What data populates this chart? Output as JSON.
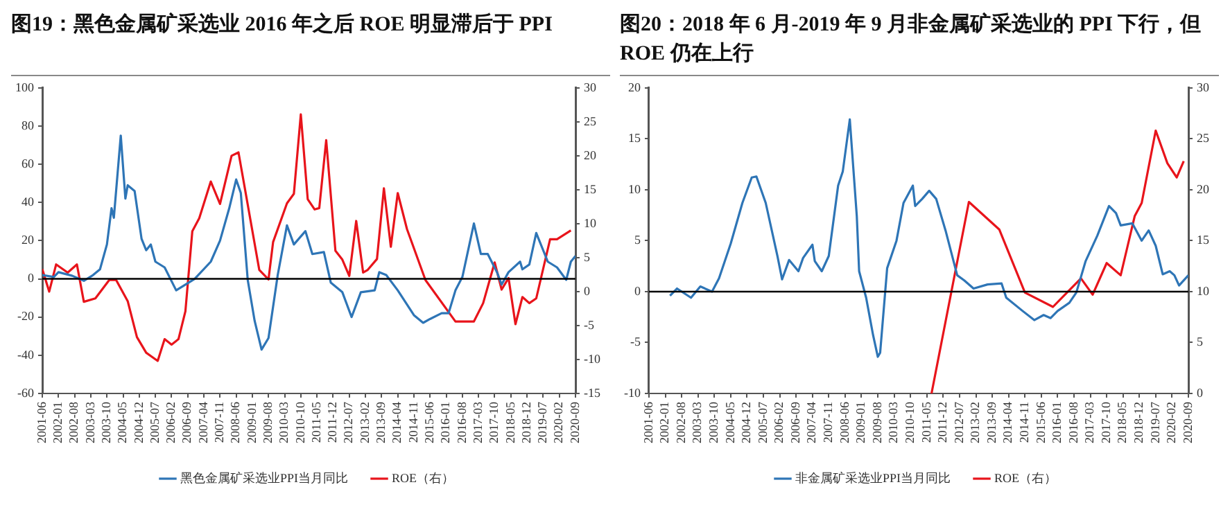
{
  "chart_data": [
    {
      "type": "line",
      "title": "图19：黑色金属矿采选业 2016 年之后 ROE 明显滞后于 PPI",
      "xlim": [
        "2001-06",
        "2020-09"
      ],
      "xticks": [
        "2001-06",
        "2002-01",
        "2002-08",
        "2003-03",
        "2003-10",
        "2004-05",
        "2004-12",
        "2005-07",
        "2006-02",
        "2006-09",
        "2007-04",
        "2007-11",
        "2008-06",
        "2009-01",
        "2009-08",
        "2010-03",
        "2010-10",
        "2011-05",
        "2011-12",
        "2012-07",
        "2013-02",
        "2013-09",
        "2014-04",
        "2014-11",
        "2015-06",
        "2016-01",
        "2016-08",
        "2017-03",
        "2017-10",
        "2018-05",
        "2018-12",
        "2019-07",
        "2020-02",
        "2020-09"
      ],
      "ylim": [
        -60,
        100
      ],
      "yticks": [
        -60,
        -40,
        -20,
        0,
        20,
        40,
        60,
        80,
        100
      ],
      "y2lim": [
        -15,
        30
      ],
      "y2ticks": [
        -15,
        -10,
        -5,
        0,
        5,
        10,
        15,
        20,
        25,
        30
      ],
      "legend": "bottom",
      "marker": "none",
      "line_style": "solid",
      "series": [
        {
          "name": "黑色金属矿采选业PPI当月同比",
          "color": "#2e75b6",
          "x": [
            "2001-06",
            "2001-11",
            "2002-01",
            "2002-07",
            "2002-12",
            "2003-04",
            "2003-07",
            "2003-10",
            "2003-12",
            "2004-01",
            "2004-04",
            "2004-06",
            "2004-07",
            "2004-10",
            "2005-01",
            "2005-03",
            "2005-05",
            "2005-07",
            "2005-11",
            "2006-04",
            "2006-08",
            "2006-12",
            "2007-07",
            "2007-11",
            "2008-03",
            "2008-06",
            "2008-08",
            "2008-11",
            "2009-02",
            "2009-05",
            "2009-08",
            "2009-12",
            "2010-04",
            "2010-07",
            "2010-12",
            "2011-03",
            "2011-08",
            "2011-11",
            "2012-04",
            "2012-08",
            "2012-12",
            "2013-06",
            "2013-08",
            "2013-11",
            "2014-04",
            "2014-11",
            "2015-03",
            "2015-06",
            "2015-11",
            "2016-02",
            "2016-05",
            "2016-08",
            "2017-01",
            "2017-04",
            "2017-07",
            "2017-11",
            "2018-01",
            "2018-04",
            "2018-09",
            "2018-10",
            "2019-01",
            "2019-04",
            "2019-09",
            "2020-01",
            "2020-05",
            "2020-07",
            "2020-09"
          ],
          "values": [
            2,
            1,
            3.5,
            1.6,
            -1,
            2,
            5,
            18,
            37,
            32,
            75,
            42,
            49,
            46,
            21,
            15,
            18,
            9,
            6,
            -6,
            -3,
            0,
            9,
            20,
            37,
            52,
            45,
            -0.5,
            -22,
            -37,
            -31,
            2,
            28,
            18,
            25,
            13,
            14,
            -2,
            -7,
            -20,
            -7,
            -6,
            3.5,
            2,
            -6,
            -19,
            -23,
            -21,
            -18,
            -18,
            -6,
            1,
            29,
            13,
            13,
            3.5,
            -3,
            3.5,
            9,
            5,
            7.5,
            24,
            9,
            6,
            -0.5,
            9,
            12
          ]
        },
        {
          "name": "ROE（右）",
          "color": "#e8141b",
          "axis": "y2",
          "x": [
            "2001-06",
            "2001-09",
            "2001-12",
            "2002-05",
            "2002-09",
            "2002-12",
            "2003-05",
            "2003-11",
            "2004-02",
            "2004-07",
            "2004-11",
            "2005-03",
            "2005-08",
            "2005-11",
            "2006-02",
            "2006-05",
            "2006-08",
            "2006-11",
            "2007-02",
            "2007-07",
            "2007-11",
            "2008-04",
            "2008-07",
            "2009-04",
            "2009-08",
            "2009-10",
            "2010-04",
            "2010-07",
            "2010-10",
            "2011-01",
            "2011-04",
            "2011-06",
            "2011-09",
            "2012-01",
            "2012-04",
            "2012-07",
            "2012-10",
            "2013-01",
            "2013-03",
            "2013-07",
            "2013-10",
            "2014-01",
            "2014-04",
            "2014-08",
            "2015-04",
            "2016-05",
            "2017-01",
            "2017-05",
            "2017-10",
            "2018-01",
            "2018-04",
            "2018-07",
            "2018-10",
            "2019-01",
            "2019-04",
            "2019-10",
            "2020-01",
            "2020-07"
          ],
          "values": [
            3.3,
            0,
            4,
            2.8,
            4,
            -1.5,
            -1,
            1.7,
            1.7,
            -1.4,
            -6.7,
            -9,
            -10.2,
            -7,
            -7.8,
            -7,
            -2.9,
            8.9,
            10.8,
            16.2,
            12.9,
            20,
            20.5,
            3.2,
            1.8,
            7.3,
            13,
            14.4,
            26.1,
            13.6,
            12.1,
            12.3,
            22.3,
            6,
            4.7,
            2.3,
            10.4,
            2.8,
            3.2,
            4.8,
            15.2,
            6.6,
            14.5,
            9.2,
            1.7,
            -4.4,
            -4.4,
            -1.7,
            4.3,
            0.3,
            2,
            -4.8,
            -0.8,
            -1.7,
            -1,
            7.7,
            7.7,
            9
          ]
        }
      ]
    },
    {
      "type": "line",
      "title": "图20：2018 年 6 月-2019 年 9 月非金属矿采选业的 PPI 下行，但 ROE 仍在上行",
      "xlim": [
        "2001-06",
        "2020-09"
      ],
      "xticks": [
        "2001-06",
        "2002-01",
        "2002-08",
        "2003-03",
        "2003-10",
        "2004-05",
        "2004-12",
        "2005-07",
        "2006-02",
        "2006-09",
        "2007-04",
        "2007-11",
        "2008-06",
        "2009-01",
        "2009-08",
        "2010-03",
        "2010-10",
        "2011-05",
        "2011-12",
        "2012-07",
        "2013-02",
        "2013-09",
        "2014-04",
        "2014-11",
        "2015-06",
        "2016-01",
        "2016-08",
        "2017-03",
        "2017-10",
        "2018-05",
        "2018-12",
        "2019-07",
        "2020-02",
        "2020-09"
      ],
      "ylim": [
        -10,
        20
      ],
      "yticks": [
        -10,
        -5,
        0,
        5,
        10,
        15,
        20
      ],
      "y2lim": [
        0,
        30
      ],
      "y2ticks": [
        0,
        5,
        10,
        15,
        20,
        25,
        30
      ],
      "legend": "bottom",
      "marker": "none",
      "line_style": "solid",
      "series": [
        {
          "name": "非金属矿采选业PPI当月同比",
          "color": "#2e75b6",
          "x": [
            "2002-03",
            "2002-06",
            "2002-12",
            "2003-04",
            "2003-09",
            "2003-12",
            "2004-05",
            "2004-10",
            "2005-02",
            "2005-04",
            "2005-08",
            "2006-01",
            "2006-03",
            "2006-06",
            "2006-10",
            "2006-12",
            "2007-04",
            "2007-05",
            "2007-08",
            "2007-11",
            "2008-03",
            "2008-05",
            "2008-08",
            "2008-11",
            "2008-12",
            "2009-03",
            "2009-06",
            "2009-08",
            "2009-09",
            "2009-12",
            "2010-04",
            "2010-07",
            "2010-11",
            "2010-12",
            "2011-03",
            "2011-06",
            "2011-09",
            "2012-01",
            "2012-06",
            "2012-09",
            "2013-01",
            "2013-07",
            "2014-01",
            "2014-03",
            "2014-10",
            "2015-03",
            "2015-07",
            "2015-10",
            "2016-01",
            "2016-06",
            "2016-09",
            "2017-01",
            "2017-06",
            "2017-11",
            "2018-02",
            "2018-04",
            "2018-09",
            "2019-01",
            "2019-04",
            "2019-07",
            "2019-10",
            "2020-01",
            "2020-03",
            "2020-05",
            "2020-09"
          ],
          "values": [
            -0.4,
            0.3,
            -0.6,
            0.5,
            0,
            1.3,
            4.7,
            8.7,
            11.2,
            11.3,
            8.7,
            3.5,
            1.2,
            3.1,
            2,
            3.3,
            4.6,
            3,
            2,
            3.5,
            10.4,
            11.8,
            16.9,
            7.4,
            2,
            -0.6,
            -4.3,
            -6.4,
            -6,
            2.3,
            5,
            8.7,
            10.4,
            8.4,
            9.1,
            9.9,
            9.1,
            6,
            1.6,
            1.1,
            0.3,
            0.7,
            0.8,
            -0.6,
            -1.9,
            -2.8,
            -2.3,
            -2.6,
            -1.9,
            -1.1,
            -0.1,
            3,
            5.5,
            8.4,
            7.7,
            6.5,
            6.7,
            5,
            6,
            4.5,
            1.7,
            2,
            1.6,
            0.6,
            1.6
          ]
        },
        {
          "name": "ROE（右）",
          "color": "#e8141b",
          "axis": "y2",
          "x": [
            "2011-07",
            "2012-11",
            "2013-12",
            "2014-11",
            "2015-11",
            "2016-11",
            "2017-04",
            "2017-10",
            "2018-04",
            "2018-07",
            "2018-10",
            "2019-01",
            "2019-07",
            "2019-12",
            "2020-04",
            "2020-07"
          ],
          "values": [
            0,
            18.8,
            16.1,
            9.9,
            8.5,
            11.3,
            9.7,
            12.8,
            11.6,
            14.5,
            17.4,
            18.7,
            25.8,
            22.6,
            21.2,
            22.8
          ]
        }
      ]
    }
  ]
}
